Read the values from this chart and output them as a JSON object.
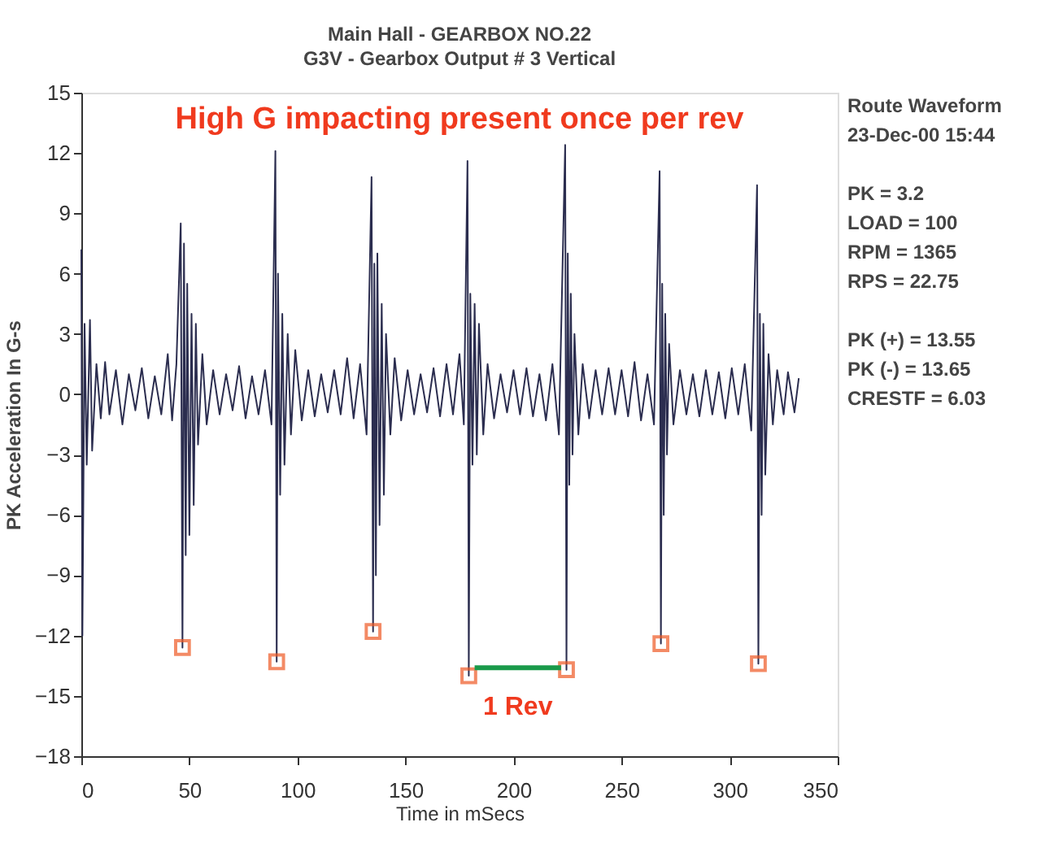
{
  "chart_data": {
    "type": "line",
    "title": "Main Hall - GEARBOX NO.22",
    "subtitle": "G3V - Gearbox Output # 3 Vertical",
    "xlabel": "Time in mSecs",
    "ylabel": "PK Acceleration In G-s",
    "xlim": [
      0,
      350
    ],
    "xticks": [
      0,
      50,
      100,
      150,
      200,
      250,
      300,
      350
    ],
    "ylim": [
      -18,
      15
    ],
    "yticks": [
      -18,
      -15,
      -12,
      -9,
      -6,
      -3,
      0,
      3,
      6,
      9,
      12,
      15
    ],
    "grid": false,
    "legend": false,
    "line_style": "solid",
    "series": [
      {
        "color": "#2b2d4f",
        "marker": "none",
        "x": [
          0,
          0.5,
          1.5,
          2.5,
          4,
          5,
          7,
          9,
          11,
          13,
          16,
          19,
          22,
          25,
          28,
          31,
          34,
          37,
          40,
          42,
          44,
          46,
          46.8,
          47.5,
          48.3,
          49,
          50,
          51,
          52,
          53,
          54,
          56,
          58,
          61,
          64,
          67,
          70,
          73,
          76,
          79,
          82,
          85,
          88,
          89.8,
          90.4,
          91,
          92,
          93,
          94,
          95.5,
          97,
          99,
          102,
          105,
          108,
          111,
          114,
          117,
          120,
          123,
          126,
          129,
          132,
          134.3,
          135,
          135.6,
          136.3,
          137,
          138,
          139,
          140,
          141,
          143,
          145,
          148,
          151,
          154,
          157,
          160,
          163,
          166,
          169,
          172,
          175,
          177,
          178.7,
          179.3,
          180,
          181,
          182,
          183,
          184,
          186,
          188,
          191,
          194,
          197,
          200,
          203,
          206,
          209,
          212,
          215,
          218,
          221,
          223.9,
          224.5,
          225.1,
          225.8,
          226.5,
          227.3,
          228.2,
          230,
          232,
          235,
          238,
          241,
          244,
          247,
          250,
          253,
          256,
          259,
          262,
          265,
          267.6,
          268.2,
          268.8,
          269.5,
          270.2,
          271,
          272,
          274,
          277,
          280,
          283,
          286,
          289,
          292,
          295,
          298,
          301,
          304,
          307,
          310,
          312.7,
          313.3,
          314,
          314.8,
          315.6,
          316.5,
          318,
          320,
          322,
          325,
          327,
          330,
          332
        ],
        "values": [
          7.2,
          -12.0,
          3.5,
          -3.5,
          3.7,
          -2.8,
          1.5,
          -1.2,
          1.6,
          -1.0,
          1.2,
          -1.5,
          1.0,
          -0.8,
          1.3,
          -1.2,
          0.9,
          -1.0,
          2.0,
          -1.3,
          1.5,
          8.5,
          -12.6,
          7.5,
          -8.0,
          5.5,
          -7.0,
          4.0,
          -5.5,
          3.5,
          -2.5,
          2.0,
          -1.5,
          1.2,
          -1.0,
          1.0,
          -0.8,
          1.4,
          -1.2,
          0.9,
          -1.0,
          1.2,
          -1.5,
          12.1,
          -13.3,
          6.0,
          -5.0,
          4.0,
          -3.5,
          3.0,
          -2.0,
          2.2,
          -1.3,
          1.2,
          -1.1,
          1.0,
          -0.9,
          1.2,
          -1.0,
          1.8,
          -1.2,
          1.5,
          -2.0,
          10.8,
          -11.8,
          6.5,
          -9.0,
          7.0,
          -6.5,
          4.5,
          -5.0,
          3.0,
          -2.0,
          1.8,
          -1.3,
          1.2,
          -1.0,
          1.0,
          -0.9,
          1.3,
          -1.1,
          1.5,
          -1.0,
          2.0,
          -1.5,
          11.6,
          -14.0,
          5.0,
          -3.5,
          4.5,
          -3.0,
          3.5,
          -2.0,
          1.5,
          -1.2,
          1.0,
          -0.9,
          1.2,
          -1.0,
          1.3,
          -1.1,
          1.0,
          -1.3,
          1.5,
          -2.0,
          12.4,
          -13.7,
          7.0,
          -4.5,
          5.0,
          -3.0,
          3.0,
          -2.0,
          1.5,
          -1.2,
          1.2,
          -1.0,
          1.3,
          -1.0,
          1.2,
          -1.1,
          1.6,
          -1.3,
          1.0,
          -1.5,
          11.1,
          -12.4,
          5.5,
          -6.0,
          4.0,
          -3.0,
          2.5,
          -1.5,
          1.2,
          -1.0,
          1.0,
          -1.1,
          1.2,
          -1.0,
          1.1,
          -1.2,
          1.3,
          -1.0,
          1.5,
          -1.8,
          10.4,
          -13.4,
          4.0,
          -6.0,
          3.5,
          -4.0,
          2.0,
          -1.5,
          1.2,
          -1.0,
          1.1,
          -0.9,
          0.8
        ]
      },
      {
        "type": "scatter",
        "color": "#ee5a24",
        "marker": "square",
        "x": [
          46.8,
          90.4,
          135,
          179.3,
          224.5,
          268.2,
          313.3
        ],
        "values": [
          -12.6,
          -13.3,
          -11.8,
          -14.0,
          -13.7,
          -12.4,
          -13.4
        ]
      },
      {
        "type": "line",
        "name": "1 Rev",
        "color": "#1a9a4a",
        "marker": "none",
        "x": [
          182,
          222
        ],
        "values": [
          -13.6,
          -13.6
        ]
      }
    ],
    "annotations": [
      "High G impacting present once per rev",
      "Route Waveform",
      "23-Dec-00  15:44",
      "PK = 3.2",
      "LOAD = 100",
      "RPM = 1365",
      "RPS = 22.75",
      "PK (+) = 13.55",
      "PK (-) = 13.65",
      "CRESTF = 6.03"
    ]
  }
}
